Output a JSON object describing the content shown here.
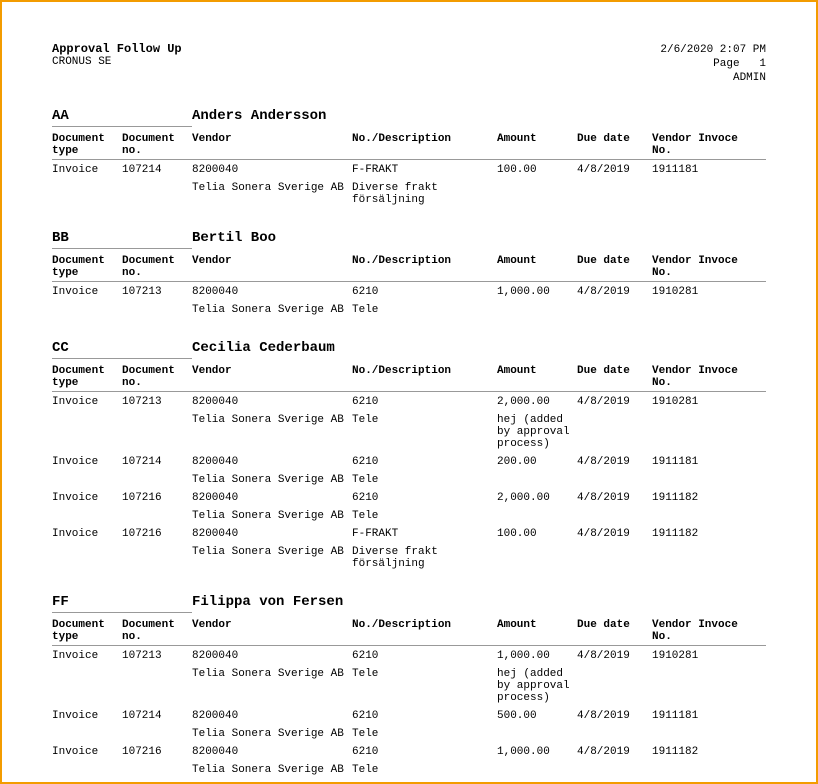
{
  "report": {
    "title": "Approval Follow Up",
    "company": "CRONUS SE",
    "timestamp": "2/6/2020 2:07 PM",
    "page_label": "Page",
    "page_no": "1",
    "user": "ADMIN"
  },
  "columns": {
    "doc_type": "Document type",
    "doc_no": "Document no.",
    "vendor": "Vendor",
    "no_desc": "No./Description",
    "amount": "Amount",
    "due_date": "Due date",
    "vendor_inv": "Vendor Invoce No."
  },
  "sections": [
    {
      "code": "AA",
      "name": "Anders Andersson",
      "rows": [
        {
          "doc_type": "Invoice",
          "doc_no": "107214",
          "vendor_no": "8200040",
          "vendor_name": "Telia Sonera Sverige AB",
          "no": "F-FRAKT",
          "desc": "Diverse frakt försäljning",
          "amount": "100.00",
          "amount_note": "",
          "due": "4/8/2019",
          "inv": "1911181"
        }
      ]
    },
    {
      "code": "BB",
      "name": "Bertil Boo",
      "rows": [
        {
          "doc_type": "Invoice",
          "doc_no": "107213",
          "vendor_no": "8200040",
          "vendor_name": "Telia Sonera Sverige AB",
          "no": "6210",
          "desc": "Tele",
          "amount": "1,000.00",
          "amount_note": "",
          "due": "4/8/2019",
          "inv": "1910281"
        }
      ]
    },
    {
      "code": "CC",
      "name": "Cecilia Cederbaum",
      "rows": [
        {
          "doc_type": "Invoice",
          "doc_no": "107213",
          "vendor_no": "8200040",
          "vendor_name": "Telia Sonera Sverige AB",
          "no": "6210",
          "desc": "Tele",
          "amount": "2,000.00",
          "amount_note": "hej (added by approval process)",
          "due": "4/8/2019",
          "inv": "1910281"
        },
        {
          "doc_type": "Invoice",
          "doc_no": "107214",
          "vendor_no": "8200040",
          "vendor_name": "Telia Sonera Sverige AB",
          "no": "6210",
          "desc": "Tele",
          "amount": "200.00",
          "amount_note": "",
          "due": "4/8/2019",
          "inv": "1911181"
        },
        {
          "doc_type": "Invoice",
          "doc_no": "107216",
          "vendor_no": "8200040",
          "vendor_name": "Telia Sonera Sverige AB",
          "no": "6210",
          "desc": "Tele",
          "amount": "2,000.00",
          "amount_note": "",
          "due": "4/8/2019",
          "inv": "1911182"
        },
        {
          "doc_type": "Invoice",
          "doc_no": "107216",
          "vendor_no": "8200040",
          "vendor_name": "Telia Sonera Sverige AB",
          "no": "F-FRAKT",
          "desc": "Diverse frakt försäljning",
          "amount": "100.00",
          "amount_note": "",
          "due": "4/8/2019",
          "inv": "1911182"
        }
      ]
    },
    {
      "code": "FF",
      "name": "Filippa von Fersen",
      "rows": [
        {
          "doc_type": "Invoice",
          "doc_no": "107213",
          "vendor_no": "8200040",
          "vendor_name": "Telia Sonera Sverige AB",
          "no": "6210",
          "desc": "Tele",
          "amount": "1,000.00",
          "amount_note": "hej (added by approval process)",
          "due": "4/8/2019",
          "inv": "1910281"
        },
        {
          "doc_type": "Invoice",
          "doc_no": "107214",
          "vendor_no": "8200040",
          "vendor_name": "Telia Sonera Sverige AB",
          "no": "6210",
          "desc": "Tele",
          "amount": "500.00",
          "amount_note": "",
          "due": "4/8/2019",
          "inv": "1911181"
        },
        {
          "doc_type": "Invoice",
          "doc_no": "107216",
          "vendor_no": "8200040",
          "vendor_name": "Telia Sonera Sverige AB",
          "no": "6210",
          "desc": "Tele",
          "amount": "1,000.00",
          "amount_note": "",
          "due": "4/8/2019",
          "inv": "1911182"
        }
      ]
    }
  ]
}
